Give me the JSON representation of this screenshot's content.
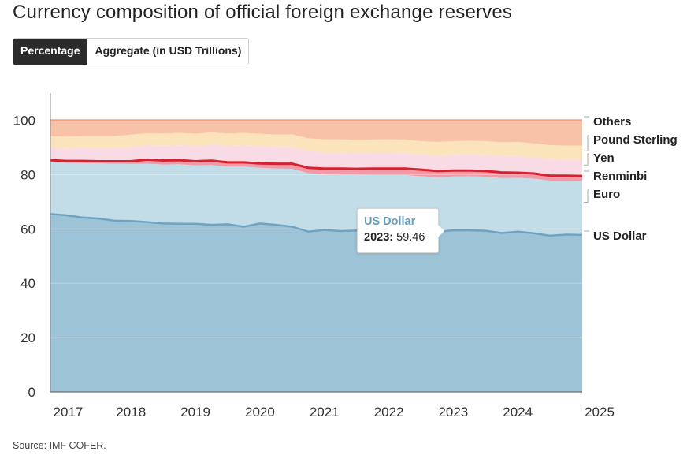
{
  "title": "Currency composition of official foreign exchange reserves",
  "toggle": {
    "percentage_label": "Percentage",
    "aggregate_label": "Aggregate (in USD Trillions)"
  },
  "tooltip": {
    "series": "US Dollar",
    "year": "2023:",
    "value": "59.46"
  },
  "source": {
    "prefix": "Source: ",
    "link": "IMF COFER."
  },
  "colors": {
    "us_dollar": "#9dc3d6",
    "us_dollar_line": "#6ea3c4",
    "euro": "#c2dde7",
    "renminbi": "#d8202f",
    "renminbi_band": "#ef9aa6",
    "yen": "#f8dbe5",
    "pound": "#fbe3bb",
    "others": "#f8c2a9",
    "others_line": "#f2a07f"
  },
  "chart_data": {
    "type": "area",
    "stacked": true,
    "x": [
      2016.75,
      2017,
      2017.25,
      2017.5,
      2017.75,
      2018,
      2018.25,
      2018.5,
      2018.75,
      2019,
      2019.25,
      2019.5,
      2019.75,
      2020,
      2020.25,
      2020.5,
      2020.75,
      2021,
      2021.25,
      2021.5,
      2021.75,
      2022,
      2022.25,
      2022.5,
      2022.75,
      2023,
      2023.25,
      2023.5,
      2023.75,
      2024,
      2024.25,
      2024.5,
      2024.75,
      2025
    ],
    "series": [
      {
        "name": "US Dollar",
        "values": [
          65.5,
          65.0,
          64.2,
          63.8,
          63.0,
          62.9,
          62.5,
          62.0,
          61.9,
          61.9,
          61.5,
          61.7,
          60.8,
          62.0,
          61.5,
          60.8,
          59.0,
          59.6,
          59.2,
          59.4,
          59.2,
          58.9,
          59.0,
          59.3,
          58.9,
          59.5,
          59.5,
          59.3,
          58.5,
          59.0,
          58.4,
          57.5,
          57.9,
          57.8
        ]
      },
      {
        "name": "Euro",
        "values": [
          19.0,
          19.3,
          20.0,
          20.3,
          21.0,
          21.0,
          21.5,
          21.7,
          21.9,
          21.5,
          22.0,
          21.2,
          22.1,
          20.5,
          20.7,
          21.3,
          21.5,
          20.5,
          20.7,
          20.5,
          20.6,
          20.9,
          20.8,
          20.1,
          20.1,
          19.8,
          19.9,
          19.9,
          20.2,
          19.8,
          20.1,
          20.3,
          19.9,
          20.0
        ]
      },
      {
        "name": "Renminbi",
        "values": [
          1.2,
          1.1,
          1.2,
          1.2,
          1.3,
          1.4,
          1.9,
          1.9,
          1.9,
          1.9,
          2.0,
          2.0,
          2.0,
          2.0,
          2.2,
          2.3,
          2.4,
          2.5,
          2.7,
          2.6,
          2.8,
          2.8,
          2.8,
          2.8,
          2.7,
          2.6,
          2.5,
          2.5,
          2.5,
          2.3,
          2.3,
          2.2,
          2.2,
          2.1
        ]
      },
      {
        "name": "Yen",
        "values": [
          4.0,
          4.2,
          4.3,
          4.4,
          4.4,
          4.9,
          4.8,
          5.0,
          5.1,
          5.2,
          5.4,
          5.6,
          5.8,
          5.9,
          5.8,
          5.8,
          5.7,
          5.6,
          5.6,
          5.5,
          5.5,
          5.5,
          5.4,
          5.2,
          5.3,
          5.4,
          5.5,
          5.6,
          5.7,
          5.8,
          5.6,
          5.7,
          5.5,
          5.6
        ]
      },
      {
        "name": "Pound Sterling",
        "values": [
          4.4,
          4.4,
          4.4,
          4.5,
          4.5,
          4.5,
          4.5,
          4.5,
          4.5,
          4.5,
          4.6,
          4.6,
          4.6,
          4.6,
          4.5,
          4.6,
          4.7,
          4.8,
          4.8,
          4.8,
          4.8,
          4.9,
          4.9,
          4.9,
          5.0,
          5.0,
          5.0,
          5.0,
          5.0,
          5.1,
          5.1,
          5.1,
          5.2,
          5.2
        ]
      },
      {
        "name": "Others",
        "values": [
          5.9,
          6.0,
          5.9,
          5.8,
          5.8,
          5.3,
          4.8,
          4.9,
          4.7,
          5.0,
          4.5,
          4.9,
          4.7,
          5.0,
          5.3,
          5.2,
          6.7,
          7.0,
          7.0,
          7.2,
          7.1,
          7.0,
          7.1,
          7.7,
          8.0,
          7.7,
          7.6,
          7.7,
          8.1,
          8.0,
          8.5,
          9.2,
          9.3,
          9.3
        ]
      }
    ],
    "xlim": [
      2016.75,
      2025
    ],
    "ylim": [
      0,
      110
    ],
    "y_ticks": [
      0,
      20,
      40,
      60,
      80,
      100
    ],
    "x_ticks": [
      "2017",
      "2018",
      "2019",
      "2020",
      "2021",
      "2022",
      "2023",
      "2024",
      "2025"
    ],
    "legend_labels": [
      "Others",
      "Pound Sterling",
      "Yen",
      "Renminbi",
      "Euro",
      "US Dollar"
    ],
    "legend_position": "right"
  }
}
